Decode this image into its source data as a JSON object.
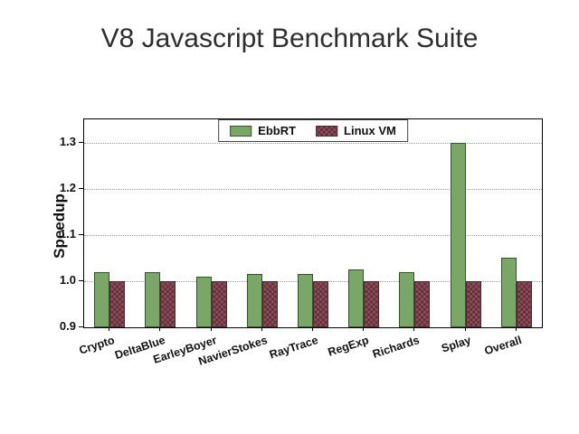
{
  "page": {
    "title": "V8 Javascript Benchmark Suite"
  },
  "chart_data": {
    "type": "bar",
    "title": "V8 Javascript Benchmark Suite",
    "xlabel": "",
    "ylabel": "Speedup",
    "categories": [
      "Crypto",
      "DeltaBlue",
      "EarleyBoyer",
      "NavierStokes",
      "RayTrace",
      "RegExp",
      "Richards",
      "Splay",
      "Overall"
    ],
    "series": [
      {
        "name": "EbbRT",
        "color": "#7aa767",
        "edge_color": "#37522f",
        "hatch": "none",
        "values": [
          1.02,
          1.02,
          1.01,
          1.015,
          1.015,
          1.025,
          1.02,
          1.3,
          1.05
        ]
      },
      {
        "name": "Linux VM",
        "color": "#8d4e5a",
        "edge_color": "#4a2830",
        "hatch": "x",
        "values": [
          1.0,
          1.0,
          1.0,
          1.0,
          1.0,
          1.0,
          1.0,
          1.0,
          1.0
        ]
      }
    ],
    "ylim": [
      0.9,
      1.35
    ],
    "yticks": [
      0.9,
      1.0,
      1.1,
      1.2,
      1.3
    ],
    "grid": "horizontal-dotted",
    "legend_position": "top-center-inside"
  }
}
